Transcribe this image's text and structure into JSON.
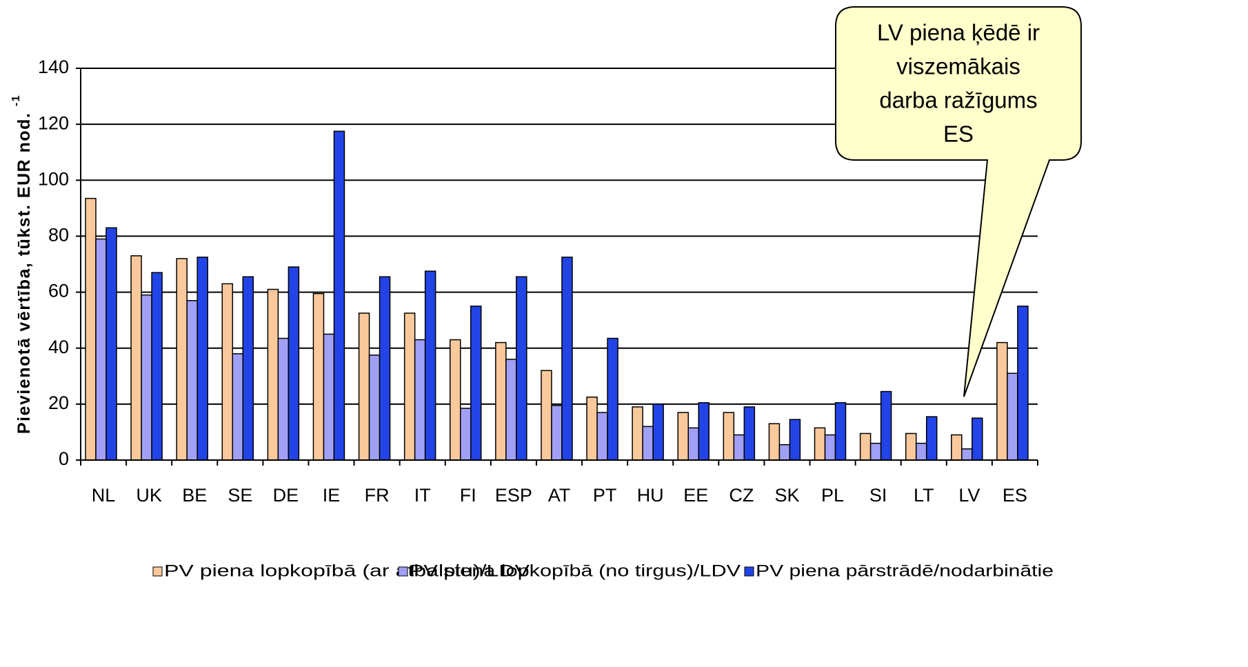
{
  "chart_data": {
    "type": "bar",
    "y_label": "Pievienotā vērtība, tūkst. EUR nod.",
    "y_label_superscript": "-1",
    "annotation": [
      "LV piena ķēdē ir",
      "viszemākais",
      "darba ražīgums",
      "ES"
    ],
    "categories": [
      "NL",
      "UK",
      "BE",
      "SE",
      "DE",
      "IE",
      "FR",
      "IT",
      "FI",
      "ESP",
      "AT",
      "PT",
      "HU",
      "EE",
      "CZ",
      "SK",
      "PL",
      "SI",
      "LT",
      "LV",
      "ES"
    ],
    "series": [
      {
        "name": "PV piena lopkopībā (ar atbalstu)/LDV",
        "color": "#f9c99b",
        "values": [
          93.5,
          73,
          72,
          63,
          61,
          59.5,
          52.5,
          52.5,
          43,
          42,
          32,
          22.5,
          19,
          17,
          17,
          13,
          11.5,
          9.5,
          9.5,
          9,
          42
        ]
      },
      {
        "name": "PV piena lopkopībā (no tirgus)/LDV",
        "color": "#a0a0f6",
        "values": [
          79,
          59,
          57,
          38,
          43.5,
          45,
          37.5,
          43,
          18.5,
          36,
          19.5,
          17,
          12,
          11.5,
          9,
          5.5,
          9,
          6,
          6,
          4,
          31
        ]
      },
      {
        "name": "PV piena pārstrādē/nodarbinātie",
        "color": "#2244e6",
        "values": [
          83,
          67,
          72.5,
          65.5,
          69,
          117.5,
          65.5,
          67.5,
          55,
          65.5,
          72.5,
          43.5,
          20,
          20.5,
          19,
          14.5,
          20.5,
          24.5,
          15.5,
          15,
          55
        ]
      }
    ],
    "ylim": [
      0,
      140
    ],
    "yticks": [
      0,
      20,
      40,
      60,
      80,
      100,
      120,
      140
    ],
    "grid": true
  }
}
